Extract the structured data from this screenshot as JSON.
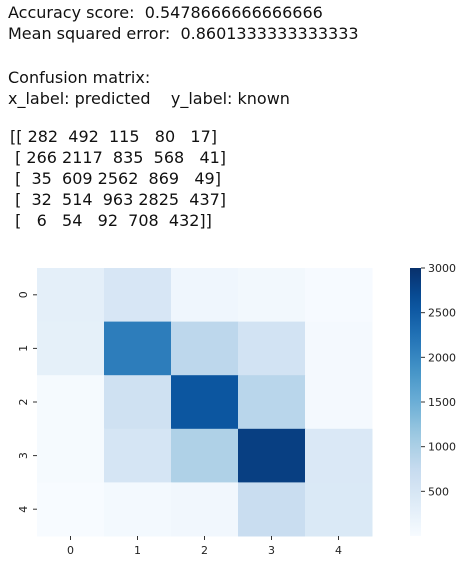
{
  "text": {
    "accuracy_line": "Accuracy score:  0.5478666666666666",
    "mse_line": "Mean squared error:  0.8601333333333333",
    "cm_heading": "Confusion matrix:",
    "axes_line": "x_label: predicted    y_label: known",
    "matrix_rows": [
      "[[ 282  492  115   80   17]",
      " [ 266 2117  835  568   41]",
      " [  35  609 2562  869   49]",
      " [  32  514  963 2825  437]",
      " [   6   54   92  708  432]]"
    ]
  },
  "chart_data": {
    "type": "heatmap",
    "x_categories": [
      "0",
      "1",
      "2",
      "3",
      "4"
    ],
    "y_categories": [
      "0",
      "1",
      "2",
      "3",
      "4"
    ],
    "values": [
      [
        282,
        492,
        115,
        80,
        17
      ],
      [
        266,
        2117,
        835,
        568,
        41
      ],
      [
        35,
        609,
        2562,
        869,
        49
      ],
      [
        32,
        514,
        963,
        2825,
        437
      ],
      [
        6,
        54,
        92,
        708,
        432
      ]
    ],
    "colorbar_range": [
      0,
      3000
    ],
    "colorbar_ticks": [
      500,
      1000,
      1500,
      2000,
      2500,
      3000
    ],
    "colormap": "Blues",
    "colors": {
      "low": "#f7fbff",
      "high": "#08306b"
    }
  }
}
